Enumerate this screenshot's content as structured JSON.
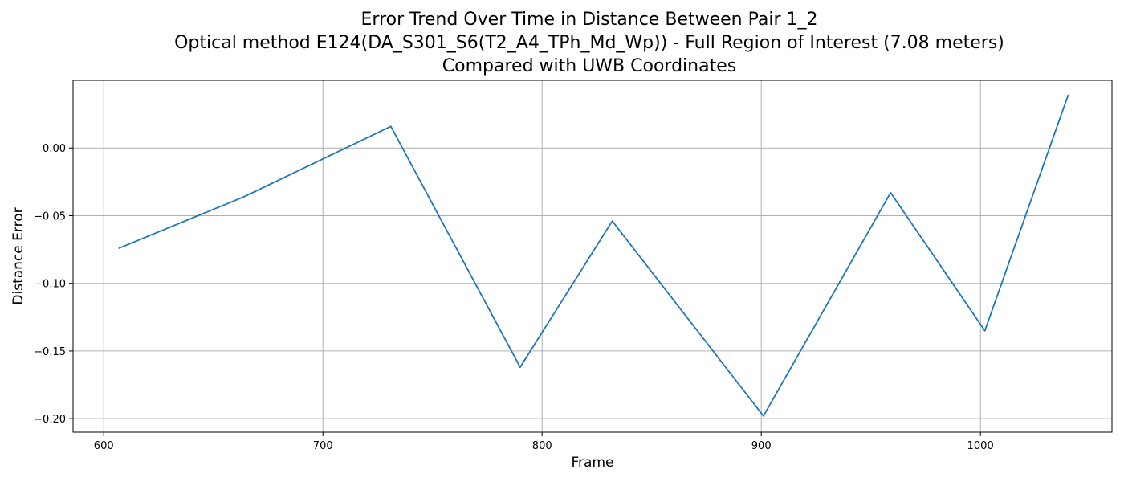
{
  "chart_data": {
    "type": "line",
    "title_lines": [
      "Error Trend Over Time in Distance Between Pair 1_2",
      "Optical method E124(DA_S301_S6(T2_A4_TPh_Md_Wp)) - Full Region of Interest (7.08 meters)",
      "Compared with UWB Coordinates"
    ],
    "xlabel": "Frame",
    "ylabel": "Distance Error",
    "xlim": [
      586,
      1060
    ],
    "ylim": [
      -0.21,
      0.05
    ],
    "xticks": [
      600,
      700,
      800,
      900,
      1000
    ],
    "yticks": [
      0.0,
      -0.05,
      -0.1,
      -0.15,
      -0.2
    ],
    "xtick_labels": [
      "600",
      "700",
      "800",
      "900",
      "1000"
    ],
    "ytick_labels": [
      "0.00",
      "−0.05",
      "−0.10",
      "−0.15",
      "−0.20"
    ],
    "grid": true,
    "legend": "none",
    "series": [
      {
        "color": "#1f77b4",
        "x": [
          607,
          664,
          731,
          790,
          832,
          901,
          959,
          1002,
          1040
        ],
        "y": [
          -0.074,
          -0.036,
          0.016,
          -0.162,
          -0.054,
          -0.198,
          -0.033,
          -0.135,
          0.039
        ]
      }
    ]
  }
}
